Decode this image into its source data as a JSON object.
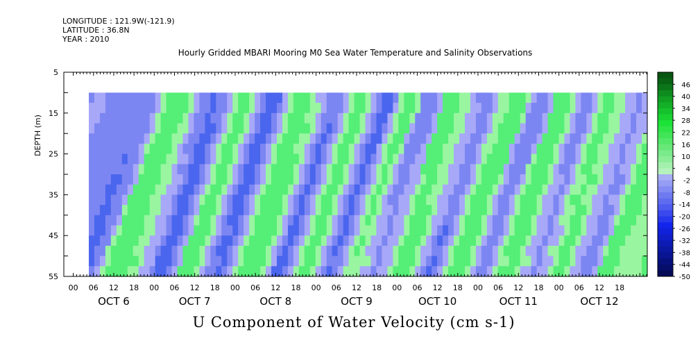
{
  "meta": {
    "longitude": "LONGITUDE : 121.9W(-121.9)",
    "latitude": "LATITUDE : 36.8N",
    "year": "YEAR : 2010"
  },
  "chart_data": {
    "type": "heatmap",
    "title": "Hourly Gridded MBARI Mooring M0 Sea Water Temperature and Salinity Observations",
    "xlabel": "U Component of Water Velocity (cm s-1)",
    "ylabel": "DEPTH (m)",
    "ylim": [
      55,
      5
    ],
    "data_depth_range": [
      10,
      55
    ],
    "y_tick_labels": [
      "5",
      "15",
      "25",
      "35",
      "45",
      "55"
    ],
    "x_hour_labels": [
      "00",
      "06",
      "12",
      "18",
      "00",
      "06",
      "12",
      "18",
      "00",
      "06",
      "12",
      "18",
      "00",
      "06",
      "12",
      "18",
      "00",
      "06",
      "12",
      "18",
      "00",
      "06",
      "12",
      "18",
      "00",
      "06",
      "12",
      "18"
    ],
    "x_day_labels": [
      "OCT  6",
      "OCT  7",
      "OCT  8",
      "OCT  9",
      "OCT 10",
      "OCT 11",
      "OCT 12"
    ],
    "colorbar_labels": [
      "46",
      "40",
      "34",
      "28",
      "22",
      "16",
      "10",
      "4",
      "-2",
      "-8",
      "-14",
      "-20",
      "-26",
      "-32",
      "-38",
      "-44",
      "-50"
    ],
    "colorbar_range": [
      -50,
      52
    ],
    "colors": {
      "strong_green": "#00ee44",
      "green": "#55ee77",
      "light_green": "#99f5a0",
      "light_blue": "#a8a8f8",
      "blue": "#7c86f2",
      "strong_blue": "#4a66ee"
    },
    "column_values": [
      -12,
      -14,
      -18,
      -22,
      -20,
      -16,
      -10,
      -2,
      6,
      12,
      16,
      14,
      10,
      4,
      -4,
      -12,
      -20,
      -26,
      -22,
      -14,
      -4,
      6,
      12,
      10,
      4,
      -4,
      -12,
      -20,
      -24,
      -18,
      -8,
      4,
      14,
      18,
      16,
      10,
      2,
      -8,
      -18,
      -22,
      -16,
      -6,
      4,
      12,
      10,
      4,
      -6,
      -16,
      -22,
      -18,
      -8,
      4,
      10,
      8,
      2,
      -8,
      -16,
      -12,
      -4,
      6,
      12,
      14,
      10,
      4,
      -4,
      -12,
      -18,
      -14,
      -6,
      4,
      10,
      16,
      12,
      6,
      -2,
      -10,
      -16,
      -10,
      -2,
      8,
      14,
      12,
      6,
      -2,
      -10,
      -14,
      -8,
      2,
      10,
      14,
      10,
      4,
      -4,
      -10,
      -14,
      -8,
      0,
      8,
      14,
      12,
      6
    ]
  }
}
